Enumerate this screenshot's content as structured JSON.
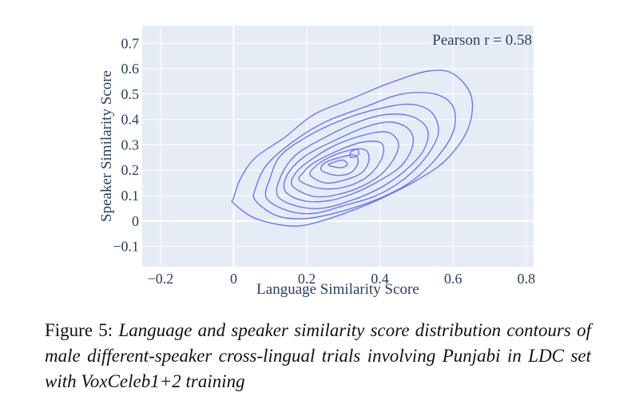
{
  "chart_data": {
    "type": "contour",
    "title": "",
    "xlabel": "Language Similarity Score",
    "ylabel": "Speaker Similarity Score",
    "xlim": [
      -0.25,
      0.82
    ],
    "ylim": [
      -0.18,
      0.77
    ],
    "x_ticks": [
      -0.2,
      0,
      0.2,
      0.4,
      0.6,
      0.8
    ],
    "x_tick_labels": [
      "−0.2",
      "0",
      "0.2",
      "0.4",
      "0.6",
      "0.8"
    ],
    "y_ticks": [
      -0.1,
      0,
      0.1,
      0.2,
      0.3,
      0.4,
      0.5,
      0.6,
      0.7
    ],
    "y_tick_labels": [
      "−0.1",
      "0",
      "0.1",
      "0.2",
      "0.3",
      "0.4",
      "0.5",
      "0.6",
      "0.7"
    ],
    "grid": true,
    "background_color": "#e5ecf6",
    "line_color": "#636efa",
    "annotation": "Pearson r = 0.58",
    "pearson_r": 0.58,
    "density_peak": [
      0.3,
      0.24
    ],
    "contours": [
      [
        [
          0.0,
          0.07
        ],
        [
          0.06,
          0.01
        ],
        [
          0.16,
          -0.02
        ],
        [
          0.24,
          0.0
        ],
        [
          0.34,
          0.05
        ],
        [
          0.42,
          0.1
        ],
        [
          0.5,
          0.16
        ],
        [
          0.58,
          0.24
        ],
        [
          0.64,
          0.36
        ],
        [
          0.65,
          0.49
        ],
        [
          0.6,
          0.58
        ],
        [
          0.53,
          0.59
        ],
        [
          0.42,
          0.54
        ],
        [
          0.32,
          0.48
        ],
        [
          0.22,
          0.42
        ],
        [
          0.14,
          0.33
        ],
        [
          0.06,
          0.25
        ],
        [
          0.02,
          0.17
        ],
        [
          0.0,
          0.09
        ]
      ],
      [
        [
          0.06,
          0.08
        ],
        [
          0.12,
          0.02
        ],
        [
          0.2,
          0.01
        ],
        [
          0.3,
          0.04
        ],
        [
          0.4,
          0.09
        ],
        [
          0.48,
          0.15
        ],
        [
          0.55,
          0.24
        ],
        [
          0.6,
          0.35
        ],
        [
          0.6,
          0.45
        ],
        [
          0.55,
          0.5
        ],
        [
          0.46,
          0.5
        ],
        [
          0.36,
          0.45
        ],
        [
          0.25,
          0.39
        ],
        [
          0.16,
          0.31
        ],
        [
          0.09,
          0.22
        ],
        [
          0.06,
          0.13
        ]
      ],
      [
        [
          0.09,
          0.09
        ],
        [
          0.15,
          0.04
        ],
        [
          0.22,
          0.03
        ],
        [
          0.3,
          0.06
        ],
        [
          0.39,
          0.1
        ],
        [
          0.47,
          0.17
        ],
        [
          0.53,
          0.26
        ],
        [
          0.56,
          0.35
        ],
        [
          0.54,
          0.43
        ],
        [
          0.48,
          0.46
        ],
        [
          0.39,
          0.44
        ],
        [
          0.3,
          0.4
        ],
        [
          0.21,
          0.34
        ],
        [
          0.13,
          0.26
        ],
        [
          0.1,
          0.17
        ]
      ],
      [
        [
          0.12,
          0.1
        ],
        [
          0.17,
          0.06
        ],
        [
          0.24,
          0.05
        ],
        [
          0.32,
          0.08
        ],
        [
          0.4,
          0.13
        ],
        [
          0.47,
          0.2
        ],
        [
          0.52,
          0.28
        ],
        [
          0.53,
          0.36
        ],
        [
          0.49,
          0.41
        ],
        [
          0.42,
          0.42
        ],
        [
          0.34,
          0.39
        ],
        [
          0.25,
          0.33
        ],
        [
          0.17,
          0.26
        ],
        [
          0.13,
          0.18
        ]
      ],
      [
        [
          0.14,
          0.12
        ],
        [
          0.19,
          0.08
        ],
        [
          0.26,
          0.08
        ],
        [
          0.33,
          0.11
        ],
        [
          0.4,
          0.16
        ],
        [
          0.46,
          0.22
        ],
        [
          0.49,
          0.3
        ],
        [
          0.48,
          0.36
        ],
        [
          0.43,
          0.39
        ],
        [
          0.36,
          0.37
        ],
        [
          0.28,
          0.32
        ],
        [
          0.2,
          0.26
        ],
        [
          0.15,
          0.19
        ]
      ],
      [
        [
          0.16,
          0.14
        ],
        [
          0.21,
          0.1
        ],
        [
          0.27,
          0.1
        ],
        [
          0.34,
          0.13
        ],
        [
          0.4,
          0.18
        ],
        [
          0.44,
          0.25
        ],
        [
          0.45,
          0.31
        ],
        [
          0.42,
          0.35
        ],
        [
          0.36,
          0.34
        ],
        [
          0.28,
          0.3
        ],
        [
          0.21,
          0.24
        ],
        [
          0.17,
          0.19
        ]
      ],
      [
        [
          0.18,
          0.16
        ],
        [
          0.23,
          0.13
        ],
        [
          0.29,
          0.13
        ],
        [
          0.35,
          0.16
        ],
        [
          0.39,
          0.21
        ],
        [
          0.41,
          0.27
        ],
        [
          0.4,
          0.31
        ],
        [
          0.35,
          0.31
        ],
        [
          0.29,
          0.28
        ],
        [
          0.22,
          0.23
        ],
        [
          0.19,
          0.19
        ]
      ],
      [
        [
          0.21,
          0.18
        ],
        [
          0.25,
          0.15
        ],
        [
          0.3,
          0.16
        ],
        [
          0.35,
          0.19
        ],
        [
          0.37,
          0.24
        ],
        [
          0.36,
          0.28
        ],
        [
          0.32,
          0.28
        ],
        [
          0.26,
          0.25
        ],
        [
          0.22,
          0.21
        ]
      ],
      [
        [
          0.24,
          0.2
        ],
        [
          0.28,
          0.18
        ],
        [
          0.32,
          0.19
        ],
        [
          0.34,
          0.23
        ],
        [
          0.33,
          0.26
        ],
        [
          0.29,
          0.25
        ],
        [
          0.25,
          0.23
        ]
      ],
      [
        [
          0.26,
          0.22
        ],
        [
          0.29,
          0.21
        ],
        [
          0.31,
          0.22
        ],
        [
          0.3,
          0.24
        ],
        [
          0.27,
          0.23
        ]
      ],
      [
        [
          0.32,
          0.25
        ],
        [
          0.34,
          0.26
        ],
        [
          0.34,
          0.28
        ],
        [
          0.33,
          0.28
        ],
        [
          0.32,
          0.27
        ]
      ]
    ]
  },
  "caption": {
    "label": "Figure 5:",
    "text": "Language and speaker similarity score distribution contours of male different-speaker cross-lingual trials involving Punjabi in LDC set with VoxCeleb1+2 training"
  }
}
